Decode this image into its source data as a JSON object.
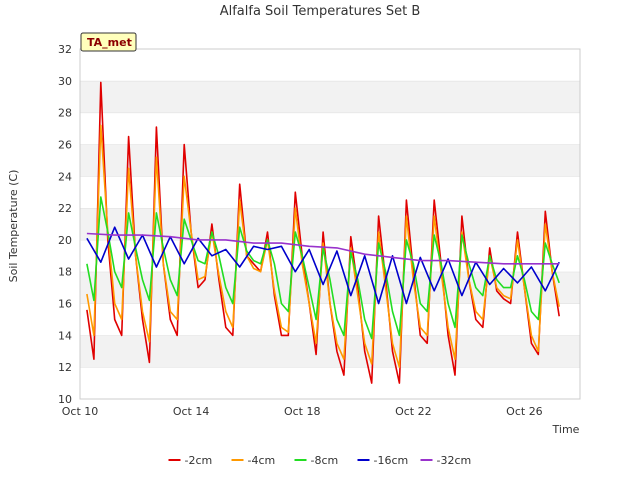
{
  "chart_data": {
    "type": "line",
    "title": "Alfalfa Soil Temperatures Set B",
    "xlabel": "Time",
    "ylabel": "Soil Temperature (C)",
    "ylim": [
      10,
      32
    ],
    "yticks": [
      "10",
      "12",
      "14",
      "16",
      "18",
      "20",
      "22",
      "24",
      "26",
      "28",
      "30",
      "32"
    ],
    "xlim": [
      "2024-10-10",
      "2024-10-28"
    ],
    "xticks": [
      "Oct 10",
      "Oct 14",
      "Oct 18",
      "Oct 22",
      "Oct 26"
    ],
    "tag": "TA_met",
    "grid": "horizontal bands",
    "legend_position": "bottom",
    "series": [
      {
        "name": "-2cm",
        "color": "#e00000",
        "x": [
          "2024-10-10 06:00",
          "2024-10-10 12:00",
          "2024-10-10 18:00",
          "2024-10-11 00:00",
          "2024-10-11 06:00",
          "2024-10-11 12:00",
          "2024-10-11 18:00",
          "2024-10-12 00:00",
          "2024-10-12 06:00",
          "2024-10-12 12:00",
          "2024-10-12 18:00",
          "2024-10-13 00:00",
          "2024-10-13 06:00",
          "2024-10-13 12:00",
          "2024-10-13 18:00",
          "2024-10-14 00:00",
          "2024-10-14 06:00",
          "2024-10-14 12:00",
          "2024-10-14 18:00",
          "2024-10-15 00:00",
          "2024-10-15 06:00",
          "2024-10-15 12:00",
          "2024-10-15 18:00",
          "2024-10-16 00:00",
          "2024-10-16 06:00",
          "2024-10-16 12:00",
          "2024-10-16 18:00",
          "2024-10-17 00:00",
          "2024-10-17 06:00",
          "2024-10-17 12:00",
          "2024-10-17 18:00",
          "2024-10-18 00:00",
          "2024-10-18 06:00",
          "2024-10-18 12:00",
          "2024-10-18 18:00",
          "2024-10-19 00:00",
          "2024-10-19 06:00",
          "2024-10-19 12:00",
          "2024-10-19 18:00",
          "2024-10-20 00:00",
          "2024-10-20 06:00",
          "2024-10-20 12:00",
          "2024-10-20 18:00",
          "2024-10-21 00:00",
          "2024-10-21 06:00",
          "2024-10-21 12:00",
          "2024-10-21 18:00",
          "2024-10-22 00:00",
          "2024-10-22 06:00",
          "2024-10-22 12:00",
          "2024-10-22 18:00",
          "2024-10-23 00:00",
          "2024-10-23 06:00",
          "2024-10-23 12:00",
          "2024-10-23 18:00",
          "2024-10-24 00:00",
          "2024-10-24 06:00",
          "2024-10-24 12:00",
          "2024-10-24 18:00",
          "2024-10-25 00:00",
          "2024-10-25 06:00",
          "2024-10-25 12:00",
          "2024-10-25 18:00",
          "2024-10-26 00:00",
          "2024-10-26 06:00",
          "2024-10-26 12:00",
          "2024-10-26 18:00",
          "2024-10-27 00:00",
          "2024-10-27 06:00"
        ],
        "y": [
          15.6,
          12.5,
          29.9,
          20.0,
          15.0,
          14.0,
          26.5,
          19.0,
          15.0,
          12.3,
          27.1,
          18.5,
          15.0,
          14.0,
          26.0,
          20.5,
          17.0,
          17.5,
          21.0,
          17.5,
          14.5,
          14.0,
          23.5,
          19.0,
          18.5,
          18.0,
          20.5,
          16.5,
          14.0,
          14.0,
          23.0,
          19.0,
          16.0,
          12.8,
          20.5,
          16.0,
          13.0,
          11.5,
          20.2,
          17.0,
          13.0,
          11.0,
          21.5,
          17.5,
          13.0,
          11.0,
          22.5,
          18.0,
          14.0,
          13.5,
          22.5,
          18.5,
          14.0,
          11.5,
          21.5,
          17.5,
          15.0,
          14.5,
          19.5,
          16.8,
          16.3,
          16.0,
          20.5,
          17.0,
          13.5,
          12.8,
          21.8,
          18.0,
          15.2
        ]
      },
      {
        "name": "-4cm",
        "color": "#ff9900",
        "x": [
          "2024-10-10 06:00",
          "2024-10-10 12:00",
          "2024-10-10 18:00",
          "2024-10-11 00:00",
          "2024-10-11 06:00",
          "2024-10-11 12:00",
          "2024-10-11 18:00",
          "2024-10-12 00:00",
          "2024-10-12 06:00",
          "2024-10-12 12:00",
          "2024-10-12 18:00",
          "2024-10-13 00:00",
          "2024-10-13 06:00",
          "2024-10-13 12:00",
          "2024-10-13 18:00",
          "2024-10-14 00:00",
          "2024-10-14 06:00",
          "2024-10-14 12:00",
          "2024-10-14 18:00",
          "2024-10-15 00:00",
          "2024-10-15 06:00",
          "2024-10-15 12:00",
          "2024-10-15 18:00",
          "2024-10-16 00:00",
          "2024-10-16 06:00",
          "2024-10-16 12:00",
          "2024-10-16 18:00",
          "2024-10-17 00:00",
          "2024-10-17 06:00",
          "2024-10-17 12:00",
          "2024-10-17 18:00",
          "2024-10-18 00:00",
          "2024-10-18 06:00",
          "2024-10-18 12:00",
          "2024-10-18 18:00",
          "2024-10-19 00:00",
          "2024-10-19 06:00",
          "2024-10-19 12:00",
          "2024-10-19 18:00",
          "2024-10-20 00:00",
          "2024-10-20 06:00",
          "2024-10-20 12:00",
          "2024-10-20 18:00",
          "2024-10-21 00:00",
          "2024-10-21 06:00",
          "2024-10-21 12:00",
          "2024-10-21 18:00",
          "2024-10-22 00:00",
          "2024-10-22 06:00",
          "2024-10-22 12:00",
          "2024-10-22 18:00",
          "2024-10-23 00:00",
          "2024-10-23 06:00",
          "2024-10-23 12:00",
          "2024-10-23 18:00",
          "2024-10-24 00:00",
          "2024-10-24 06:00",
          "2024-10-24 12:00",
          "2024-10-24 18:00",
          "2024-10-25 00:00",
          "2024-10-25 06:00",
          "2024-10-25 12:00",
          "2024-10-25 18:00",
          "2024-10-26 00:00",
          "2024-10-26 06:00",
          "2024-10-26 12:00",
          "2024-10-26 18:00",
          "2024-10-27 00:00",
          "2024-10-27 06:00"
        ],
        "y": [
          16.6,
          14.0,
          27.2,
          20.5,
          16.0,
          15.0,
          24.5,
          19.0,
          15.5,
          13.6,
          25.2,
          18.5,
          15.5,
          15.0,
          24.0,
          20.5,
          17.5,
          17.7,
          20.5,
          17.8,
          15.5,
          14.5,
          22.5,
          19.0,
          18.2,
          18.0,
          20.0,
          16.8,
          14.5,
          14.2,
          22.0,
          18.5,
          16.0,
          13.5,
          19.8,
          16.0,
          13.5,
          12.5,
          19.5,
          16.5,
          13.5,
          12.2,
          20.5,
          17.0,
          13.5,
          12.0,
          21.5,
          17.5,
          14.5,
          14.0,
          21.5,
          18.0,
          14.5,
          12.5,
          20.5,
          17.5,
          15.5,
          15.0,
          19.0,
          17.0,
          16.5,
          16.3,
          20.0,
          17.0,
          14.0,
          13.0,
          21.0,
          18.0,
          15.8
        ]
      },
      {
        "name": "-8cm",
        "color": "#22dd22",
        "x": [
          "2024-10-10 06:00",
          "2024-10-10 12:00",
          "2024-10-10 18:00",
          "2024-10-11 00:00",
          "2024-10-11 06:00",
          "2024-10-11 12:00",
          "2024-10-11 18:00",
          "2024-10-12 00:00",
          "2024-10-12 06:00",
          "2024-10-12 12:00",
          "2024-10-12 18:00",
          "2024-10-13 00:00",
          "2024-10-13 06:00",
          "2024-10-13 12:00",
          "2024-10-13 18:00",
          "2024-10-14 00:00",
          "2024-10-14 06:00",
          "2024-10-14 12:00",
          "2024-10-14 18:00",
          "2024-10-15 00:00",
          "2024-10-15 06:00",
          "2024-10-15 12:00",
          "2024-10-15 18:00",
          "2024-10-16 00:00",
          "2024-10-16 06:00",
          "2024-10-16 12:00",
          "2024-10-16 18:00",
          "2024-10-17 00:00",
          "2024-10-17 06:00",
          "2024-10-17 12:00",
          "2024-10-17 18:00",
          "2024-10-18 00:00",
          "2024-10-18 06:00",
          "2024-10-18 12:00",
          "2024-10-18 18:00",
          "2024-10-19 00:00",
          "2024-10-19 06:00",
          "2024-10-19 12:00",
          "2024-10-19 18:00",
          "2024-10-20 00:00",
          "2024-10-20 06:00",
          "2024-10-20 12:00",
          "2024-10-20 18:00",
          "2024-10-21 00:00",
          "2024-10-21 06:00",
          "2024-10-21 12:00",
          "2024-10-21 18:00",
          "2024-10-22 00:00",
          "2024-10-22 06:00",
          "2024-10-22 12:00",
          "2024-10-22 18:00",
          "2024-10-23 00:00",
          "2024-10-23 06:00",
          "2024-10-23 12:00",
          "2024-10-23 18:00",
          "2024-10-24 00:00",
          "2024-10-24 06:00",
          "2024-10-24 12:00",
          "2024-10-24 18:00",
          "2024-10-25 00:00",
          "2024-10-25 06:00",
          "2024-10-25 12:00",
          "2024-10-25 18:00",
          "2024-10-26 00:00",
          "2024-10-26 06:00",
          "2024-10-26 12:00",
          "2024-10-26 18:00",
          "2024-10-27 00:00",
          "2024-10-27 06:00"
        ],
        "y": [
          18.5,
          16.2,
          22.7,
          20.5,
          18.0,
          17.0,
          21.7,
          19.5,
          17.5,
          16.2,
          21.7,
          19.5,
          17.5,
          16.5,
          21.3,
          20.0,
          18.7,
          18.5,
          20.5,
          19.0,
          17.0,
          16.0,
          20.8,
          19.3,
          18.7,
          18.5,
          20.0,
          18.5,
          16.0,
          15.5,
          20.5,
          19.0,
          17.0,
          15.0,
          19.5,
          17.5,
          15.0,
          14.0,
          19.2,
          17.5,
          15.0,
          13.8,
          19.8,
          18.0,
          15.5,
          14.0,
          20.0,
          18.5,
          16.0,
          15.5,
          20.3,
          18.5,
          16.0,
          14.5,
          20.3,
          18.5,
          17.0,
          16.5,
          19.0,
          17.5,
          17.0,
          17.0,
          19.0,
          17.5,
          15.5,
          15.0,
          19.8,
          18.5,
          17.3
        ]
      },
      {
        "name": "-16cm",
        "color": "#0000cc",
        "x": [
          "2024-10-10 06:00",
          "2024-10-10 18:00",
          "2024-10-11 06:00",
          "2024-10-11 18:00",
          "2024-10-12 06:00",
          "2024-10-12 18:00",
          "2024-10-13 06:00",
          "2024-10-13 18:00",
          "2024-10-14 06:00",
          "2024-10-14 18:00",
          "2024-10-15 06:00",
          "2024-10-15 18:00",
          "2024-10-16 06:00",
          "2024-10-16 18:00",
          "2024-10-17 06:00",
          "2024-10-17 18:00",
          "2024-10-18 06:00",
          "2024-10-18 18:00",
          "2024-10-19 06:00",
          "2024-10-19 18:00",
          "2024-10-20 06:00",
          "2024-10-20 18:00",
          "2024-10-21 06:00",
          "2024-10-21 18:00",
          "2024-10-22 06:00",
          "2024-10-22 18:00",
          "2024-10-23 06:00",
          "2024-10-23 18:00",
          "2024-10-24 06:00",
          "2024-10-24 18:00",
          "2024-10-25 06:00",
          "2024-10-25 18:00",
          "2024-10-26 06:00",
          "2024-10-26 18:00",
          "2024-10-27 06:00"
        ],
        "y": [
          20.1,
          18.6,
          20.8,
          18.8,
          20.3,
          18.3,
          20.2,
          18.5,
          20.1,
          19.0,
          19.4,
          18.3,
          19.6,
          19.4,
          19.6,
          18.0,
          19.4,
          17.2,
          19.3,
          16.5,
          19.0,
          16.0,
          19.0,
          16.0,
          18.9,
          16.8,
          18.8,
          16.5,
          18.6,
          17.2,
          18.2,
          17.3,
          18.3,
          16.8,
          18.6
        ]
      },
      {
        "name": "-32cm",
        "color": "#9933cc",
        "x": [
          "2024-10-10 06:00",
          "2024-10-11 06:00",
          "2024-10-12 06:00",
          "2024-10-13 06:00",
          "2024-10-14 06:00",
          "2024-10-15 06:00",
          "2024-10-16 06:00",
          "2024-10-17 06:00",
          "2024-10-18 06:00",
          "2024-10-19 06:00",
          "2024-10-20 06:00",
          "2024-10-21 06:00",
          "2024-10-22 06:00",
          "2024-10-23 06:00",
          "2024-10-24 06:00",
          "2024-10-25 06:00",
          "2024-10-26 06:00",
          "2024-10-27 06:00"
        ],
        "y": [
          20.4,
          20.3,
          20.3,
          20.2,
          20.0,
          20.0,
          19.8,
          19.8,
          19.6,
          19.5,
          19.1,
          18.9,
          18.7,
          18.7,
          18.6,
          18.5,
          18.5,
          18.5
        ]
      }
    ]
  }
}
